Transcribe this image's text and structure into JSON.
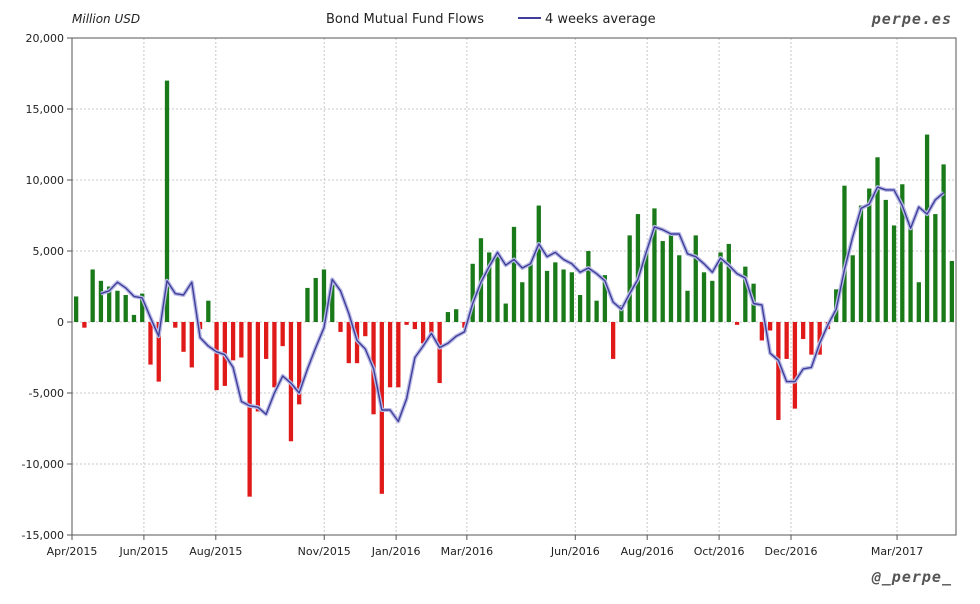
{
  "chart_data": {
    "type": "bar",
    "ylabel": "Million USD",
    "legend": {
      "bar_label": "Bond Mutual Fund Flows",
      "line_label": "4 weeks average",
      "placement": "top"
    },
    "watermark": "perpe.es",
    "credit": "@_perpe_",
    "ylim": [
      -15000,
      20000
    ],
    "yticks": [
      20000,
      15000,
      10000,
      5000,
      0,
      -5000,
      -10000,
      -15000
    ],
    "ytick_labels": [
      "20,000",
      "15,000",
      "10,000",
      "5,000",
      "0",
      "-5,000",
      "-10,000",
      "-15,000"
    ],
    "x_start": "2015-04-01",
    "x_end": "2017-04-20",
    "xticks": [
      {
        "date": "2015-04-01",
        "label": "Apr/2015"
      },
      {
        "date": "2015-06-01",
        "label": "Jun/2015"
      },
      {
        "date": "2015-08-01",
        "label": "Aug/2015"
      },
      {
        "date": "2015-11-01",
        "label": "Nov/2015"
      },
      {
        "date": "2016-01-01",
        "label": "Jan/2016"
      },
      {
        "date": "2016-03-01",
        "label": "Mar/2016"
      },
      {
        "date": "2016-06-01",
        "label": "Jun/2016"
      },
      {
        "date": "2016-08-01",
        "label": "Aug/2016"
      },
      {
        "date": "2016-10-01",
        "label": "Oct/2016"
      },
      {
        "date": "2016-12-01",
        "label": "Dec/2016"
      },
      {
        "date": "2017-03-01",
        "label": "Mar/2017"
      }
    ],
    "grid": true,
    "colors": {
      "positive": "#1a7a1a",
      "negative": "#e01919",
      "line": "#3f3f9a",
      "grid": "#c8c8c8",
      "axis": "#555555"
    },
    "series": [
      {
        "name": "Bond Mutual Fund Flows",
        "type": "bar",
        "values": [
          1800,
          -400,
          3700,
          2900,
          2500,
          2200,
          1900,
          500,
          2000,
          -3000,
          -4200,
          17000,
          -400,
          -2100,
          -3200,
          -500,
          1500,
          -4800,
          -4500,
          -2700,
          -2500,
          -12300,
          -6300,
          -2600,
          -4600,
          -1700,
          -8400,
          -5800,
          2400,
          3100,
          3700,
          2600,
          -700,
          -2900,
          -2900,
          -1000,
          -6500,
          -12100,
          -4600,
          -4600,
          -200,
          -500,
          -1500,
          -1000,
          -4300,
          700,
          900,
          -400,
          4100,
          5900,
          4900,
          4600,
          1300,
          6700,
          2800,
          4200,
          8200,
          3600,
          4200,
          3700,
          3500,
          1900,
          5000,
          1500,
          3300,
          -2600,
          1200,
          6100,
          7600,
          5000,
          8000,
          5700,
          6300,
          4700,
          2200,
          6100,
          3500,
          2900,
          4900,
          5500,
          -200,
          3900,
          2700,
          -1300,
          -600,
          -6900,
          -2600,
          -6100,
          -1200,
          -2300,
          -2300,
          -500,
          2300,
          9600,
          4700,
          8200,
          9400,
          11600,
          8600,
          6800,
          9700,
          6900,
          2800,
          13200,
          7600,
          11100,
          4300
        ]
      },
      {
        "name": "4 weeks average",
        "type": "line",
        "values": [
          null,
          null,
          null,
          2000,
          2200,
          2800,
          2400,
          1800,
          1700,
          300,
          -1000,
          2900,
          2000,
          1900,
          2800,
          -1100,
          -1700,
          -2100,
          -2300,
          -3200,
          -5600,
          -5900,
          -6000,
          -6500,
          -5000,
          -3800,
          -4300,
          -5000,
          -3300,
          -1800,
          -400,
          3000,
          2200,
          600,
          -1300,
          -1900,
          -3300,
          -6200,
          -6200,
          -7000,
          -5400,
          -2500,
          -1700,
          -800,
          -1800,
          -1500,
          -1000,
          -700,
          1300,
          2800,
          3900,
          4900,
          4000,
          4400,
          3800,
          4100,
          5500,
          4600,
          4900,
          4400,
          4100,
          3500,
          3800,
          3400,
          2900,
          1400,
          900,
          2000,
          3000,
          4900,
          6700,
          6500,
          6200,
          6200,
          4800,
          4600,
          4100,
          3500,
          4500,
          4000,
          3400,
          3100,
          1300,
          1200,
          -2200,
          -2700,
          -4200,
          -4200,
          -3300,
          -3200,
          -1500,
          -200,
          900,
          3700,
          6000,
          8000,
          8300,
          9500,
          9300,
          9300,
          8200,
          6600,
          8100,
          7600,
          8600,
          9100
        ]
      }
    ]
  }
}
